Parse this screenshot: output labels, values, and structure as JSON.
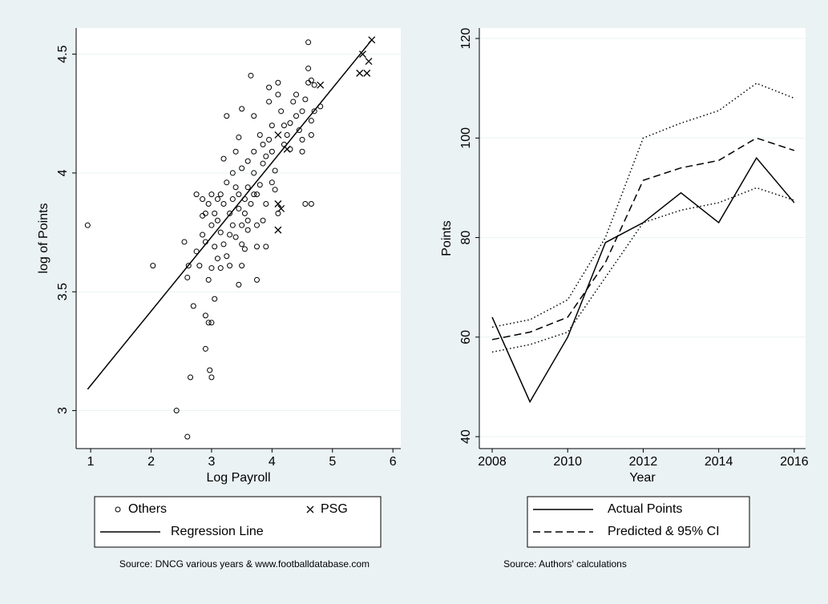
{
  "chart_data": [
    {
      "type": "scatter",
      "xlabel": "Log Payroll",
      "ylabel": "log of Points",
      "xlim": [
        0.76,
        6.13
      ],
      "ylim": [
        2.84,
        4.61
      ],
      "xticks": [
        1,
        2,
        3,
        4,
        5,
        6
      ],
      "yticks": [
        3,
        3.5,
        4,
        4.5
      ],
      "grid": true,
      "note": "Source: DNCG various years & www.footballdatabase.com",
      "series": [
        {
          "name": "Others",
          "marker": "circle",
          "color": "#000000",
          "x": [
            0.95,
            2.03,
            2.42,
            2.6,
            2.65,
            2.9,
            2.97,
            3.0,
            2.7,
            2.9,
            2.95,
            3.0,
            3.05,
            2.55,
            2.6,
            2.62,
            2.75,
            2.85,
            2.9,
            2.95,
            3.0,
            2.8,
            2.75,
            2.85,
            2.9,
            3.0,
            3.05,
            3.1,
            3.15,
            3.2,
            3.1,
            3.15,
            3.2,
            3.25,
            3.3,
            3.3,
            3.3,
            3.35,
            3.25,
            3.2,
            3.25,
            3.35,
            3.4,
            3.4,
            3.45,
            3.45,
            3.5,
            3.45,
            3.5,
            3.5,
            3.55,
            3.55,
            3.5,
            3.45,
            3.5,
            3.6,
            3.6,
            3.65,
            3.6,
            3.65,
            3.7,
            3.7,
            3.7,
            3.75,
            3.75,
            3.75,
            3.8,
            3.8,
            3.85,
            3.85,
            3.9,
            3.9,
            3.75,
            3.95,
            3.95,
            3.95,
            4.0,
            4.0,
            4.05,
            4.05,
            4.1,
            4.1,
            4.1,
            4.15,
            4.2,
            4.25,
            4.3,
            4.35,
            4.4,
            4.4,
            4.45,
            4.5,
            4.5,
            4.5,
            4.55,
            4.6,
            4.6,
            4.6,
            4.65,
            4.7,
            4.7,
            4.65,
            4.65,
            4.55,
            4.65,
            4.8,
            4.3,
            3.0,
            3.05,
            3.1,
            3.15,
            2.85,
            2.95,
            3.35,
            3.4,
            3.55,
            3.6,
            3.7,
            3.85,
            3.9,
            4.0,
            4.2
          ],
          "values": [
            3.78,
            3.61,
            3.0,
            2.89,
            3.14,
            3.26,
            3.17,
            3.14,
            3.44,
            3.4,
            3.37,
            3.37,
            3.47,
            3.71,
            3.56,
            3.61,
            3.91,
            3.89,
            3.83,
            3.55,
            3.6,
            3.61,
            3.67,
            3.74,
            3.71,
            3.78,
            3.83,
            3.89,
            3.91,
            3.87,
            3.8,
            3.75,
            3.7,
            3.65,
            3.61,
            3.74,
            3.83,
            3.89,
            3.96,
            4.06,
            4.24,
            4.0,
            4.09,
            3.94,
            3.91,
            3.85,
            3.78,
            3.53,
            3.61,
            3.7,
            3.83,
            3.89,
            4.02,
            4.15,
            4.27,
            4.05,
            3.94,
            3.87,
            3.8,
            4.41,
            4.24,
            4.09,
            4.0,
            3.91,
            3.78,
            3.69,
            3.95,
            4.16,
            4.12,
            4.04,
            3.87,
            3.69,
            3.55,
            4.3,
            4.36,
            4.14,
            4.09,
            3.96,
            4.01,
            3.93,
            3.83,
            4.33,
            4.38,
            4.26,
            4.12,
            4.16,
            4.21,
            4.3,
            4.33,
            4.24,
            4.18,
            4.26,
            4.14,
            4.09,
            4.31,
            4.38,
            4.44,
            4.55,
            4.39,
            4.37,
            4.26,
            4.22,
            4.16,
            3.87,
            3.87,
            4.28,
            4.1,
            3.91,
            3.69,
            3.64,
            3.6,
            3.82,
            3.87,
            3.78,
            3.73,
            3.68,
            3.76,
            3.91,
            3.8,
            4.07,
            4.2,
            4.2
          ]
        },
        {
          "name": "PSG",
          "marker": "x",
          "color": "#000000",
          "x": [
            5.65,
            5.5,
            5.6,
            5.45,
            5.57,
            4.8,
            4.1,
            4.25,
            4.1,
            4.15,
            4.1
          ],
          "values": [
            4.56,
            4.5,
            4.47,
            4.42,
            4.42,
            4.37,
            4.16,
            4.1,
            3.87,
            3.85,
            3.76
          ]
        },
        {
          "name": "Regression Line",
          "marker": "line",
          "dash": "solid",
          "color": "#000000",
          "x": [
            0.95,
            5.65
          ],
          "values": [
            3.09,
            4.56
          ]
        }
      ]
    },
    {
      "type": "line",
      "xlabel": "Year",
      "ylabel": "Points",
      "xlim": [
        2007.66,
        2016.3
      ],
      "ylim": [
        37.6,
        122.1
      ],
      "xticks": [
        2008,
        2010,
        2012,
        2014,
        2016
      ],
      "yticks": [
        40,
        60,
        80,
        100,
        120
      ],
      "grid": true,
      "note": "Source: Authors' calculations",
      "x": [
        2008,
        2009,
        2010,
        2011,
        2012,
        2013,
        2014,
        2015,
        2016
      ],
      "series": [
        {
          "name": "Actual Points",
          "dash": "solid",
          "color": "#000000",
          "values": [
            64,
            47,
            60,
            79,
            83,
            89,
            83,
            96,
            87
          ]
        },
        {
          "name": "Predicted & 95% CI",
          "dash": "dashed",
          "color": "#000000",
          "values": [
            59.5,
            61,
            64,
            75,
            91.5,
            94,
            95.5,
            100,
            97.5
          ]
        },
        {
          "dash": "dotted",
          "color": "#000000",
          "values": [
            62,
            63.5,
            67.5,
            80,
            100,
            103,
            105.5,
            111,
            108
          ]
        },
        {
          "dash": "dotted",
          "color": "#000000",
          "values": [
            57,
            58.5,
            61,
            72,
            83,
            85.5,
            87,
            90,
            87.5
          ]
        }
      ]
    }
  ]
}
